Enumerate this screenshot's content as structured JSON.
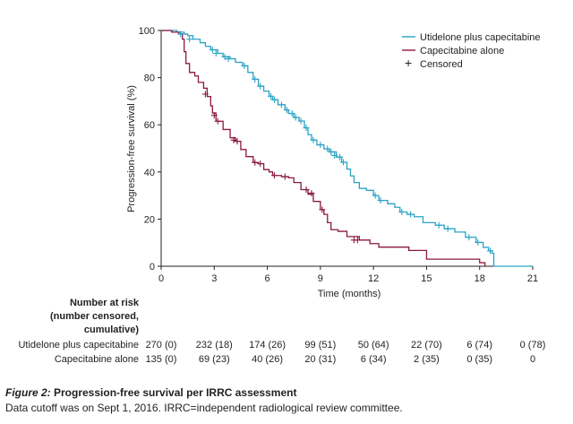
{
  "chart_data": {
    "type": "line",
    "subtype": "kaplan-meier",
    "ylabel": "Progression-free survival (%)",
    "xlabel": "Time (months)",
    "xlim": [
      0,
      21
    ],
    "ylim": [
      0,
      100
    ],
    "xticks": [
      "0",
      "3",
      "6",
      "9",
      "12",
      "15",
      "18",
      "21"
    ],
    "yticks": [
      "0",
      "20",
      "40",
      "60",
      "80",
      "100"
    ],
    "legend_position": "top-right",
    "legend": {
      "series1": "Utidelone plus capecitabine",
      "series2": "Capecitabine alone",
      "censored": "Censored",
      "censored_symbol": "+"
    },
    "series": [
      {
        "name": "Utidelone plus capecitabine",
        "color": "#2aa3c6",
        "points": [
          [
            0,
            100
          ],
          [
            0.9,
            99.3
          ],
          [
            1.3,
            98.5
          ],
          [
            1.5,
            97.8
          ],
          [
            1.8,
            96.3
          ],
          [
            2.2,
            94.8
          ],
          [
            2.5,
            93.3
          ],
          [
            2.8,
            91.8
          ],
          [
            3.2,
            90.3
          ],
          [
            3.5,
            88.8
          ],
          [
            3.9,
            88
          ],
          [
            4.2,
            86.5
          ],
          [
            4.6,
            85
          ],
          [
            4.9,
            82.2
          ],
          [
            5.2,
            79.3
          ],
          [
            5.5,
            76.4
          ],
          [
            5.8,
            74.3
          ],
          [
            6.1,
            72.1
          ],
          [
            6.3,
            70.6
          ],
          [
            6.6,
            68.5
          ],
          [
            7,
            66.3
          ],
          [
            7.2,
            64.8
          ],
          [
            7.5,
            63.1
          ],
          [
            7.8,
            61.6
          ],
          [
            8.1,
            58.7
          ],
          [
            8.3,
            55.8
          ],
          [
            8.5,
            53.5
          ],
          [
            8.8,
            51.5
          ],
          [
            9.2,
            49.8
          ],
          [
            9.5,
            48.5
          ],
          [
            9.9,
            46.3
          ],
          [
            10.2,
            44.1
          ],
          [
            10.5,
            41.2
          ],
          [
            10.7,
            38.3
          ],
          [
            10.9,
            35.5
          ],
          [
            11.2,
            33
          ],
          [
            11.6,
            32.2
          ],
          [
            12,
            30
          ],
          [
            12.3,
            27.9
          ],
          [
            12.8,
            26.5
          ],
          [
            13.2,
            25
          ],
          [
            13.5,
            23
          ],
          [
            13.9,
            22
          ],
          [
            14.3,
            21
          ],
          [
            14.8,
            18.5
          ],
          [
            15.5,
            17.4
          ],
          [
            16,
            15.9
          ],
          [
            16.6,
            14.5
          ],
          [
            17.2,
            12.3
          ],
          [
            17.8,
            10.1
          ],
          [
            18.2,
            8
          ],
          [
            18.5,
            6.5
          ],
          [
            18.7,
            5.5
          ],
          [
            18.8,
            0
          ],
          [
            21,
            0
          ]
        ],
        "censored": [
          [
            1.1,
            98.5
          ],
          [
            1.6,
            96.3
          ],
          [
            2.9,
            91.8
          ],
          [
            3.1,
            90.3
          ],
          [
            3.6,
            88.8
          ],
          [
            3.8,
            88
          ],
          [
            4.7,
            85
          ],
          [
            5.3,
            79.3
          ],
          [
            5.6,
            76.4
          ],
          [
            6.2,
            72.1
          ],
          [
            6.4,
            70.6
          ],
          [
            6.8,
            68.5
          ],
          [
            7.1,
            66.3
          ],
          [
            7.4,
            64.8
          ],
          [
            7.6,
            63.1
          ],
          [
            7.9,
            61.6
          ],
          [
            8.2,
            58.7
          ],
          [
            8.6,
            53.5
          ],
          [
            9.0,
            51.5
          ],
          [
            9.4,
            49.8
          ],
          [
            9.6,
            48.5
          ],
          [
            9.8,
            47
          ],
          [
            10.1,
            46.3
          ],
          [
            10.3,
            44.1
          ],
          [
            12.1,
            30
          ],
          [
            12.4,
            27.9
          ],
          [
            13.6,
            23
          ],
          [
            14.1,
            22
          ],
          [
            15.7,
            17.4
          ],
          [
            16.2,
            15.9
          ],
          [
            17.4,
            12.3
          ],
          [
            17.9,
            10.1
          ],
          [
            18.6,
            6.5
          ]
        ]
      },
      {
        "name": "Capecitabine alone",
        "color": "#8b1a3d",
        "points": [
          [
            0,
            100
          ],
          [
            0.6,
            99.3
          ],
          [
            1.0,
            98.5
          ],
          [
            1.2,
            96.3
          ],
          [
            1.3,
            91
          ],
          [
            1.4,
            86
          ],
          [
            1.6,
            82.2
          ],
          [
            1.9,
            80.7
          ],
          [
            2.1,
            78
          ],
          [
            2.4,
            75.5
          ],
          [
            2.6,
            72
          ],
          [
            2.8,
            68
          ],
          [
            2.9,
            65
          ],
          [
            3.1,
            61.5
          ],
          [
            3.5,
            58
          ],
          [
            3.9,
            54.5
          ],
          [
            4.2,
            53
          ],
          [
            4.5,
            49.5
          ],
          [
            4.8,
            46.5
          ],
          [
            5.2,
            44
          ],
          [
            5.5,
            43.5
          ],
          [
            5.8,
            41
          ],
          [
            6.1,
            40
          ],
          [
            6.3,
            38.5
          ],
          [
            6.8,
            38
          ],
          [
            7.2,
            37.5
          ],
          [
            7.5,
            35.5
          ],
          [
            7.9,
            32.5
          ],
          [
            8.3,
            30.5
          ],
          [
            8.6,
            27.5
          ],
          [
            9.0,
            24
          ],
          [
            9.2,
            22
          ],
          [
            9.4,
            18.5
          ],
          [
            9.6,
            15.5
          ],
          [
            10,
            14.8
          ],
          [
            10.5,
            12.6
          ],
          [
            11.2,
            11.1
          ],
          [
            11.8,
            9.6
          ],
          [
            12.3,
            8.1
          ],
          [
            14,
            6.7
          ],
          [
            15,
            3
          ],
          [
            18,
            1.5
          ],
          [
            18.3,
            0
          ]
        ],
        "censored": [
          [
            2.5,
            73
          ],
          [
            3.0,
            64
          ],
          [
            3.2,
            61.5
          ],
          [
            4.1,
            53.5
          ],
          [
            4.3,
            53
          ],
          [
            5.3,
            44
          ],
          [
            5.6,
            43.5
          ],
          [
            6.4,
            38.5
          ],
          [
            7.0,
            38
          ],
          [
            8.2,
            32.5
          ],
          [
            8.5,
            31
          ],
          [
            9.1,
            24
          ],
          [
            10.9,
            11.1
          ],
          [
            11.1,
            11.1
          ]
        ]
      }
    ]
  },
  "risk_table": {
    "heading": [
      "Number at risk",
      "(number censored,",
      "cumulative)"
    ],
    "rows": [
      {
        "label": "Utidelone plus capecitabine",
        "values": [
          "270 (0)",
          "232 (18)",
          "174 (26)",
          "99 (51)",
          "50 (64)",
          "22 (70)",
          "6 (74)",
          "0 (78)"
        ]
      },
      {
        "label": "Capecitabine alone",
        "values": [
          "135 (0)",
          "69 (23)",
          "40 (26)",
          "20 (31)",
          "6 (34)",
          "2 (35)",
          "0 (35)",
          "0"
        ]
      }
    ]
  },
  "caption": {
    "figure_label": "Figure 2:",
    "title": " Progression-free survival per IRRC assessment",
    "note": "Data cutoff was on Sept 1, 2016. IRRC=independent radiological review committee."
  }
}
